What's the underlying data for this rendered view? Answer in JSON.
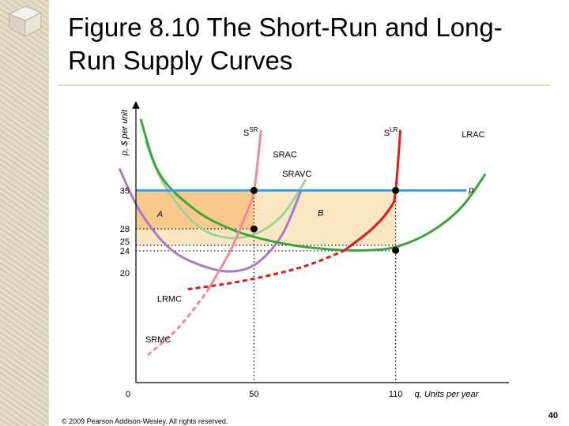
{
  "slide": {
    "title": "Figure 8.10 The Short-Run and Long-Run Supply Curves",
    "copyright": "© 2009 Pearson Addison-Wesley. All rights reserved.",
    "page_number": "40"
  },
  "chart_data": {
    "type": "line",
    "title": "",
    "xlabel": "q, Units per year",
    "ylabel": "p, $ per unit",
    "xlim": [
      0,
      160
    ],
    "ylim": [
      0,
      50
    ],
    "origin_label": "0",
    "x_ticks": [
      50,
      110
    ],
    "y_ticks": [
      20,
      24,
      25,
      28,
      35
    ],
    "grid": false,
    "colors": {
      "axis": "#000000",
      "price": "#3a9fe0",
      "lrac": "#3aa53a",
      "srac": "#9fd39b",
      "sravc": "#a67cc8",
      "ssr": "#f08a9a",
      "slr": "#e31a1c",
      "region_a": "#f9c98c",
      "region_b": "#fbe6c4",
      "points": "#000000"
    },
    "curve_labels": {
      "ssr": "S",
      "ssr_sup": "SR",
      "slr": "S",
      "slr_sup": "LR",
      "lrac": "LRAC",
      "srac": "SRAC",
      "sravc": "SRAVC",
      "lrmc": "LRMC",
      "srmc": "SRMC",
      "price": "p"
    },
    "region_labels": {
      "a": "A",
      "b": "B"
    },
    "series": [
      {
        "name": "p",
        "x": [
          0,
          140
        ],
        "y": [
          35,
          35
        ]
      },
      {
        "name": "LRAC",
        "x": [
          2,
          10,
          25,
          40,
          55,
          70,
          85,
          97,
          110,
          125,
          138,
          148
        ],
        "y": [
          48,
          38,
          31.5,
          28,
          26,
          24.8,
          24.2,
          24.1,
          24.7,
          27.5,
          32,
          38
        ]
      },
      {
        "name": "SRAC",
        "x": [
          4,
          12,
          25,
          37,
          50,
          62,
          72
        ],
        "y": [
          44,
          36,
          29,
          26.5,
          27,
          30.5,
          37
        ]
      },
      {
        "name": "SRAVC",
        "x": [
          -7,
          2,
          15,
          30,
          42,
          52,
          62,
          70
        ],
        "y": [
          39,
          31,
          24.2,
          21,
          20.3,
          22,
          27,
          35
        ]
      },
      {
        "name": "S SR (SRMC)",
        "x": [
          5,
          18,
          30,
          40,
          46,
          50,
          53
        ],
        "y": [
          5,
          10,
          16.5,
          24,
          30,
          35,
          46
        ]
      },
      {
        "name": "S LR (LRMC)",
        "x": [
          22,
          45,
          70,
          88,
          100,
          108,
          110,
          112
        ],
        "y": [
          17,
          18.5,
          21,
          24,
          28,
          32,
          35,
          46
        ]
      }
    ],
    "points": [
      {
        "x": 50,
        "y": 35
      },
      {
        "x": 50,
        "y": 28
      },
      {
        "x": 110,
        "y": 35
      },
      {
        "x": 110,
        "y": 24.1
      }
    ]
  }
}
